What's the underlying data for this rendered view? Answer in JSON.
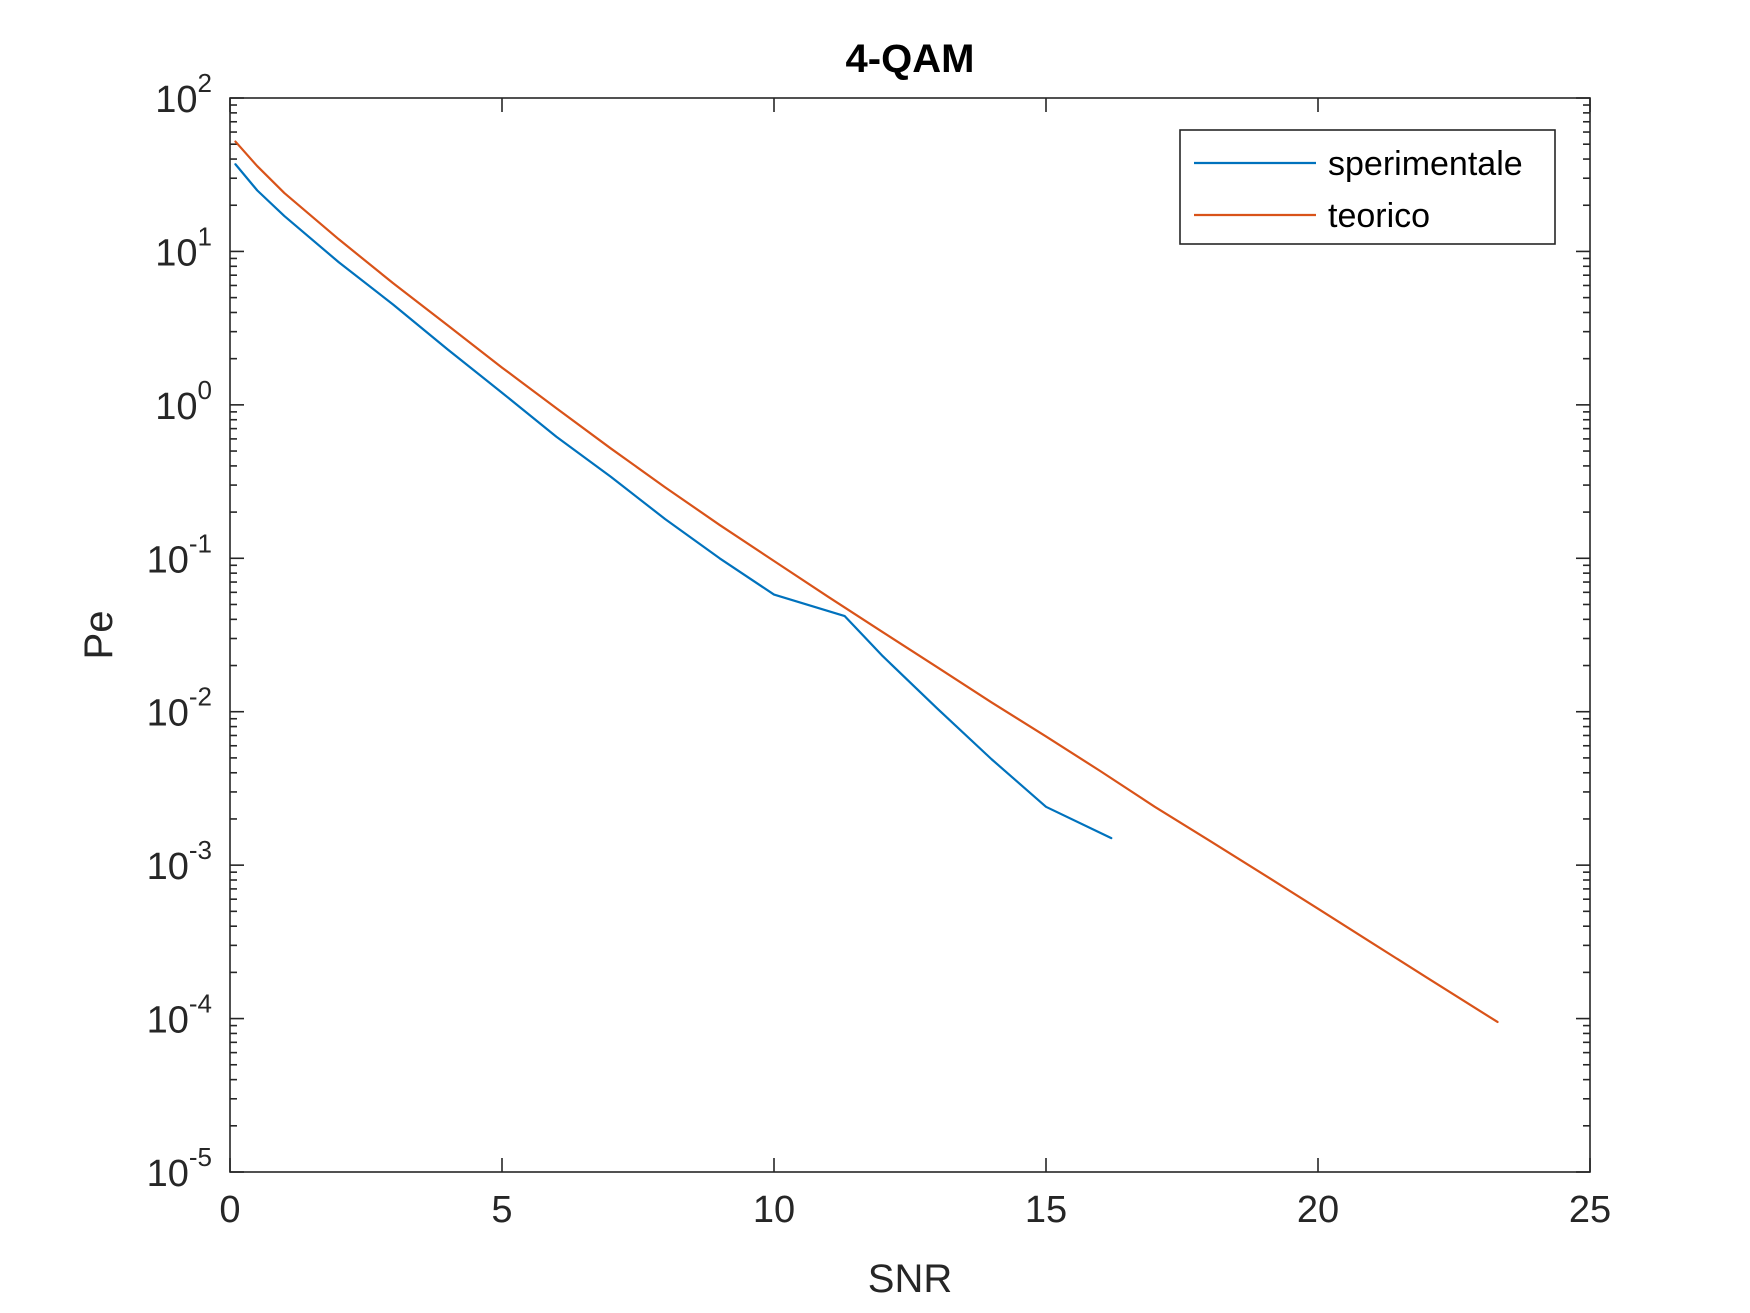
{
  "chart_data": {
    "type": "line",
    "title": "4-QAM",
    "xlabel": "SNR",
    "ylabel": "Pe",
    "xlim": [
      0,
      25
    ],
    "ylim": [
      1e-05,
      100
    ],
    "yscale": "log",
    "grid": false,
    "legend_position": "top-right",
    "x_ticks": [
      0,
      5,
      10,
      15,
      20,
      25
    ],
    "x_tick_labels": [
      "0",
      "5",
      "10",
      "15",
      "20",
      "25"
    ],
    "y_ticks": [
      100,
      10,
      1,
      0.1,
      0.01,
      0.001,
      0.0001,
      1e-05
    ],
    "y_tick_labels": [
      {
        "base": "10",
        "exp": "2"
      },
      {
        "base": "10",
        "exp": "1"
      },
      {
        "base": "10",
        "exp": "0"
      },
      {
        "base": "10",
        "exp": "-1"
      },
      {
        "base": "10",
        "exp": "-2"
      },
      {
        "base": "10",
        "exp": "-3"
      },
      {
        "base": "10",
        "exp": "-4"
      },
      {
        "base": "10",
        "exp": "-5"
      }
    ],
    "series": [
      {
        "name": "sperimentale",
        "color": "#0072BD",
        "x": [
          0.1,
          0.5,
          1,
          2,
          3,
          4,
          5,
          6,
          7,
          8,
          9,
          10,
          11.3,
          12,
          13,
          14,
          15,
          16.2
        ],
        "y": [
          37,
          25,
          17,
          8.5,
          4.5,
          2.3,
          1.2,
          0.62,
          0.34,
          0.18,
          0.1,
          0.058,
          0.042,
          0.023,
          0.0105,
          0.0049,
          0.0024,
          0.0015
        ]
      },
      {
        "name": "teorico",
        "color": "#D95319",
        "x": [
          0.1,
          0.5,
          1,
          2,
          3,
          4,
          5,
          6,
          7,
          8,
          9,
          10,
          11,
          12,
          13,
          14,
          15,
          16,
          17,
          18,
          19,
          20,
          21,
          22,
          23.3
        ],
        "y": [
          52,
          36,
          24,
          12,
          6.2,
          3.3,
          1.75,
          0.95,
          0.52,
          0.29,
          0.165,
          0.096,
          0.056,
          0.033,
          0.0195,
          0.0115,
          0.0069,
          0.0041,
          0.0024,
          0.00145,
          0.00087,
          0.00052,
          0.00031,
          0.000185,
          9.5e-05
        ]
      }
    ]
  }
}
